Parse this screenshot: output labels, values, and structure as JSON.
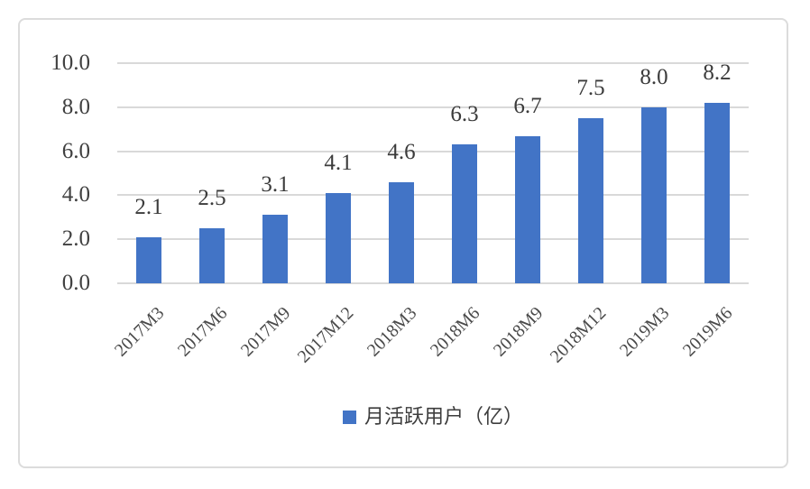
{
  "chart_data": {
    "type": "bar",
    "title": "",
    "xlabel": "",
    "ylabel": "",
    "categories": [
      "2017M3",
      "2017M6",
      "2017M9",
      "2017M12",
      "2018M3",
      "2018M6",
      "2018M9",
      "2018M12",
      "2019M3",
      "2019M6"
    ],
    "values": [
      2.1,
      2.5,
      3.1,
      4.1,
      4.6,
      6.3,
      6.7,
      7.5,
      8.0,
      8.2
    ],
    "value_labels": [
      "2.1",
      "2.5",
      "3.1",
      "4.1",
      "4.6",
      "6.3",
      "6.7",
      "7.5",
      "8.0",
      "8.2"
    ],
    "ylim": [
      0,
      10
    ],
    "ytick_step": 2,
    "ytick_labels": [
      "0.0",
      "2.0",
      "4.0",
      "6.0",
      "8.0",
      "10.0"
    ],
    "grid": true,
    "legend": [
      "月活跃用户（亿）"
    ],
    "legend_position": "bottom",
    "colors": {
      "bar": "#4274c6",
      "gridline": "#d9d9d9",
      "axis_text": "#404040",
      "frame_border": "#dcdcdc",
      "background": "#ffffff"
    }
  }
}
